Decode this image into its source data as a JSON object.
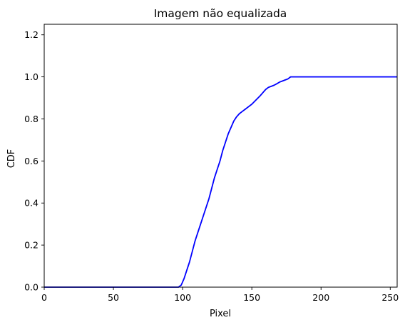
{
  "chart_data": {
    "type": "line",
    "title": "Imagem não equalizada",
    "xlabel": "Pixel",
    "ylabel": "CDF",
    "xlim": [
      0,
      255
    ],
    "ylim": [
      0,
      1.25
    ],
    "xticks": [
      0,
      50,
      100,
      150,
      200,
      250
    ],
    "xtick_labels": [
      "0",
      "50",
      "100",
      "150",
      "200",
      "250"
    ],
    "yticks": [
      0,
      0.2,
      0.4,
      0.6,
      0.8,
      1.0,
      1.2
    ],
    "ytick_labels": [
      "0.0",
      "0.2",
      "0.4",
      "0.6",
      "0.8",
      "1.0",
      "1.2"
    ],
    "grid": false,
    "series": [
      {
        "color": "#0000ff",
        "x": [
          0,
          97,
          99,
          101,
          103,
          105,
          107,
          109,
          111,
          113,
          115,
          117,
          119,
          121,
          123,
          125,
          127,
          129,
          131,
          133,
          135,
          137,
          139,
          141,
          143,
          145,
          147,
          150,
          153,
          156,
          158,
          160,
          162,
          164,
          166,
          168,
          170,
          172,
          174,
          176,
          178,
          180,
          200,
          255
        ],
        "y": [
          0,
          0,
          0.01,
          0.04,
          0.08,
          0.12,
          0.17,
          0.22,
          0.26,
          0.3,
          0.34,
          0.38,
          0.42,
          0.47,
          0.52,
          0.56,
          0.6,
          0.65,
          0.69,
          0.73,
          0.76,
          0.79,
          0.81,
          0.825,
          0.835,
          0.845,
          0.855,
          0.87,
          0.89,
          0.91,
          0.925,
          0.94,
          0.95,
          0.955,
          0.96,
          0.967,
          0.975,
          0.98,
          0.985,
          0.99,
          1.0,
          1.0,
          1.0,
          1.0
        ]
      }
    ]
  }
}
